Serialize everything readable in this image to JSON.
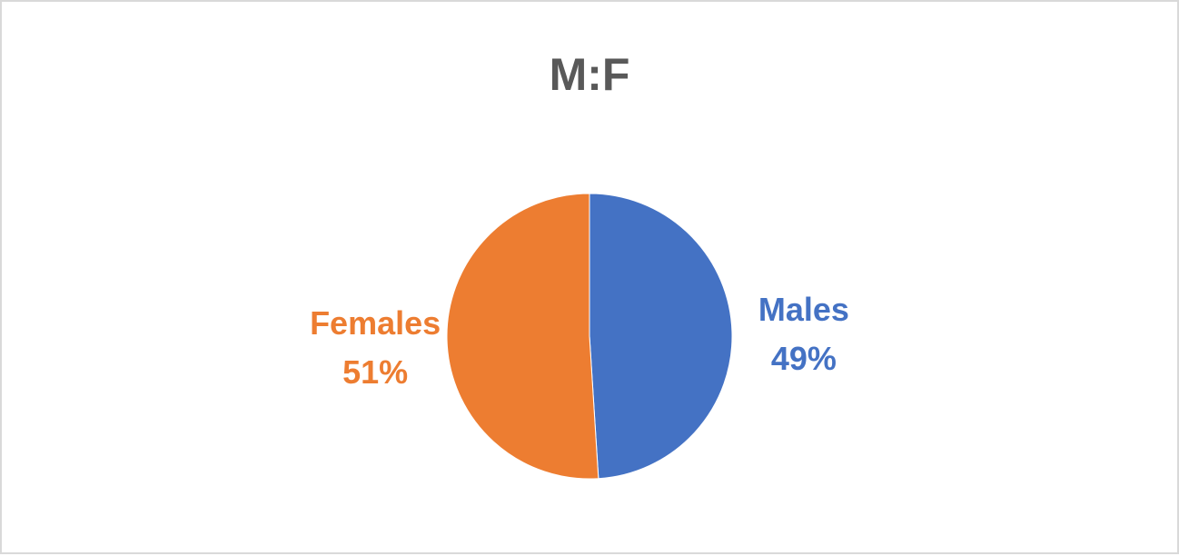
{
  "chart_data": {
    "type": "pie",
    "title": "M:F",
    "categories": [
      "Males",
      "Females"
    ],
    "values": [
      49,
      51
    ],
    "value_labels": [
      "49%",
      "51%"
    ],
    "colors": [
      "#4472c4",
      "#ed7d31"
    ]
  }
}
